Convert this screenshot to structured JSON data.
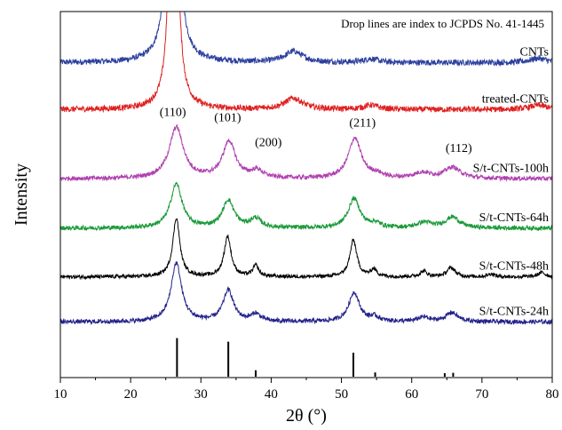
{
  "chart_data": {
    "type": "line",
    "title": "",
    "xlabel": "2θ (°)",
    "ylabel": "Intensity",
    "xlim": [
      10,
      80
    ],
    "x_ticks": [
      10,
      20,
      30,
      40,
      50,
      60,
      70,
      80
    ],
    "y_ticks_shown": false,
    "grid": false,
    "annotation": "Drop lines are index to JCPDS No. 41-1445",
    "series": [
      {
        "name": "CNTs",
        "color": "#2b3f9e",
        "baseline": 0.86,
        "noise": 0.008,
        "peaks": [
          [
            26.0,
            1.4,
            0.55
          ],
          [
            43.2,
            0.03,
            1.6
          ],
          [
            54.2,
            0.01,
            1.2
          ],
          [
            78.0,
            0.012,
            1.5
          ]
        ]
      },
      {
        "name": "treated-CNTs",
        "color": "#e02020",
        "baseline": 0.732,
        "noise": 0.008,
        "peaks": [
          [
            26.1,
            1.2,
            0.5
          ],
          [
            43.2,
            0.03,
            1.6
          ],
          [
            54.2,
            0.012,
            1.2
          ],
          [
            78.0,
            0.012,
            1.5
          ]
        ]
      },
      {
        "name": "S/t-CNTs-100h",
        "color": "#b040b0",
        "baseline": 0.543,
        "noise": 0.006,
        "peaks": [
          [
            26.5,
            0.14,
            1.2
          ],
          [
            34.0,
            0.1,
            1.1
          ],
          [
            38.0,
            0.02,
            1.0
          ],
          [
            51.9,
            0.11,
            1.1
          ],
          [
            55.0,
            0.01,
            1.0
          ],
          [
            61.5,
            0.015,
            1.4
          ],
          [
            65.8,
            0.03,
            1.4
          ]
        ]
      },
      {
        "name": "S/t-CNTs-64h",
        "color": "#1a9a3a",
        "baseline": 0.408,
        "noise": 0.006,
        "peaks": [
          [
            26.5,
            0.12,
            1.0
          ],
          [
            33.9,
            0.075,
            1.0
          ],
          [
            37.8,
            0.025,
            0.9
          ],
          [
            51.8,
            0.08,
            1.0
          ],
          [
            54.8,
            0.012,
            0.9
          ],
          [
            61.8,
            0.015,
            1.2
          ],
          [
            65.8,
            0.03,
            1.2
          ]
        ]
      },
      {
        "name": "S/t-CNTs-48h",
        "color": "#000000",
        "baseline": 0.275,
        "noise": 0.005,
        "peaks": [
          [
            26.5,
            0.16,
            0.6
          ],
          [
            33.8,
            0.11,
            0.6
          ],
          [
            37.8,
            0.03,
            0.5
          ],
          [
            51.7,
            0.1,
            0.6
          ],
          [
            54.6,
            0.02,
            0.5
          ],
          [
            61.7,
            0.015,
            0.6
          ],
          [
            65.6,
            0.025,
            0.7
          ],
          [
            71.3,
            0.008,
            0.6
          ],
          [
            78.5,
            0.012,
            0.6
          ]
        ]
      },
      {
        "name": "S/t-CNTs-24h",
        "color": "#22228a",
        "baseline": 0.152,
        "noise": 0.006,
        "peaks": [
          [
            26.5,
            0.16,
            0.9
          ],
          [
            33.9,
            0.085,
            0.9
          ],
          [
            37.8,
            0.02,
            0.8
          ],
          [
            51.8,
            0.08,
            0.9
          ],
          [
            54.7,
            0.012,
            0.8
          ],
          [
            61.7,
            0.012,
            1.0
          ],
          [
            65.7,
            0.025,
            1.0
          ]
        ]
      }
    ],
    "drop_lines": [
      {
        "x": 26.6,
        "height": 0.108
      },
      {
        "x": 33.9,
        "height": 0.098
      },
      {
        "x": 37.8,
        "height": 0.02
      },
      {
        "x": 51.7,
        "height": 0.068
      },
      {
        "x": 54.8,
        "height": 0.014
      },
      {
        "x": 64.7,
        "height": 0.012
      },
      {
        "x": 65.9,
        "height": 0.013
      }
    ],
    "peak_labels": [
      {
        "text": "(110)",
        "x": 26.0,
        "y": 0.715
      },
      {
        "text": "(101)",
        "x": 33.8,
        "y": 0.7
      },
      {
        "text": "(200)",
        "x": 39.6,
        "y": 0.632
      },
      {
        "text": "(211)",
        "x": 53.0,
        "y": 0.686
      },
      {
        "text": "(112)",
        "x": 66.7,
        "y": 0.616
      }
    ],
    "ylim": [
      0,
      1
    ]
  }
}
